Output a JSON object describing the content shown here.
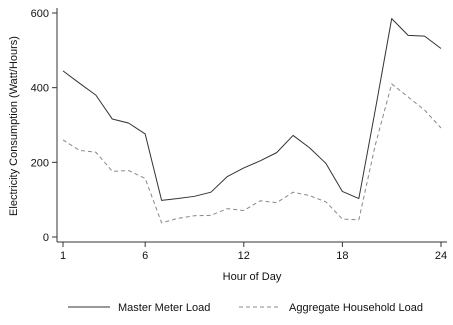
{
  "chart_data": {
    "type": "line",
    "title": "",
    "xlabel": "Hour of Day",
    "ylabel": "Electricity Consumption (Watt/Hours)",
    "xlim": [
      1,
      24
    ],
    "ylim": [
      0,
      600
    ],
    "x_ticks": [
      1,
      6,
      12,
      18,
      24
    ],
    "y_ticks": [
      0,
      200,
      400,
      600
    ],
    "grid": false,
    "legend_position": "bottom",
    "x": [
      1,
      2,
      3,
      4,
      5,
      6,
      7,
      8,
      9,
      10,
      11,
      12,
      13,
      14,
      15,
      16,
      17,
      18,
      19,
      20,
      21,
      22,
      23,
      24
    ],
    "series": [
      {
        "name": "Master Meter Load",
        "style": "solid",
        "color": "#333333",
        "values": [
          445,
          412,
          380,
          316,
          305,
          276,
          98,
          103,
          109,
          120,
          162,
          185,
          204,
          226,
          272,
          239,
          197,
          122,
          103,
          340,
          585,
          540,
          538,
          505
        ]
      },
      {
        "name": "Aggregate Household Load",
        "style": "dashed",
        "color": "#888888",
        "values": [
          260,
          232,
          227,
          176,
          178,
          157,
          38,
          50,
          57,
          58,
          76,
          71,
          97,
          92,
          120,
          111,
          94,
          48,
          46,
          246,
          410,
          375,
          340,
          292
        ]
      }
    ]
  }
}
